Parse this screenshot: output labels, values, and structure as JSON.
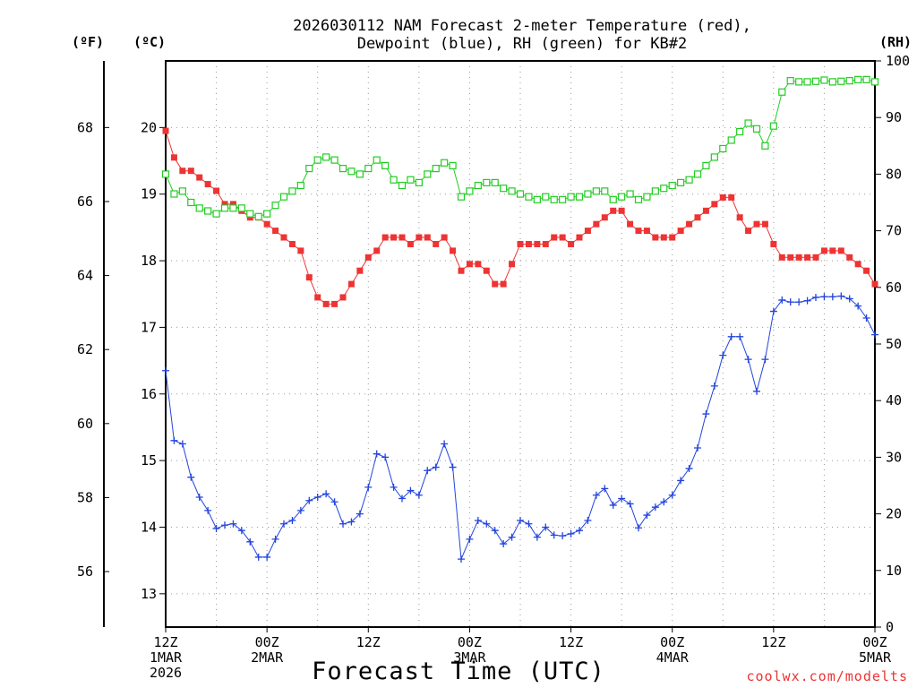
{
  "chart_data": {
    "type": "line",
    "title_lines": [
      "2026030112 NAM Forecast 2-meter Temperature (red),",
      "Dewpoint (blue), RH (green) for KB#2"
    ],
    "xlabel": "Forecast Time (UTC)",
    "credit": "coolwx.com/modelts",
    "x_range": [
      0,
      84
    ],
    "x_ticks": [
      {
        "x": 0,
        "lines": [
          "12Z",
          "1MAR",
          "2026"
        ]
      },
      {
        "x": 12,
        "lines": [
          "00Z",
          "2MAR"
        ]
      },
      {
        "x": 24,
        "lines": [
          "12Z"
        ]
      },
      {
        "x": 36,
        "lines": [
          "00Z",
          "3MAR"
        ]
      },
      {
        "x": 48,
        "lines": [
          "12Z"
        ]
      },
      {
        "x": 60,
        "lines": [
          "00Z",
          "4MAR"
        ]
      },
      {
        "x": 72,
        "lines": [
          "12Z"
        ]
      },
      {
        "x": 84,
        "lines": [
          "00Z",
          "5MAR"
        ]
      }
    ],
    "y_celsius": {
      "unit": "(ºC)",
      "range": [
        12.5,
        21.0
      ],
      "ticks": [
        13,
        14,
        15,
        16,
        17,
        18,
        19,
        20
      ]
    },
    "y_fahrenheit": {
      "unit": "(ºF)",
      "ticks": [
        56,
        58,
        60,
        62,
        64,
        66,
        68
      ]
    },
    "y_rh": {
      "unit": "(RH)",
      "range": [
        0,
        100
      ],
      "ticks": [
        0,
        10,
        20,
        30,
        40,
        50,
        60,
        70,
        80,
        90,
        100
      ]
    },
    "colors": {
      "temperature": "#ee3333",
      "dewpoint": "#2244dd",
      "rh": "#22cc22",
      "grid": "#999999"
    },
    "series": [
      {
        "name": "Temperature",
        "axis": "celsius",
        "values": [
          19.95,
          19.55,
          19.35,
          19.35,
          19.25,
          19.15,
          19.05,
          18.85,
          18.85,
          18.75,
          18.65,
          18.65,
          18.55,
          18.45,
          18.35,
          18.25,
          18.15,
          17.75,
          17.45,
          17.35,
          17.35,
          17.45,
          17.65,
          17.85,
          18.05,
          18.15,
          18.35,
          18.35,
          18.35,
          18.25,
          18.35,
          18.35,
          18.25,
          18.35,
          18.15,
          17.85,
          17.95,
          17.95,
          17.85,
          17.65,
          17.65,
          17.95,
          18.25,
          18.25,
          18.25,
          18.25,
          18.35,
          18.35,
          18.25,
          18.35,
          18.45,
          18.55,
          18.65,
          18.75,
          18.75,
          18.55,
          18.45,
          18.45,
          18.35,
          18.35,
          18.35,
          18.45,
          18.55,
          18.65,
          18.75,
          18.85,
          18.95,
          18.95,
          18.65,
          18.45,
          18.55,
          18.55,
          18.25,
          18.05,
          18.05,
          18.05,
          18.05,
          18.05,
          18.15,
          18.15,
          18.15,
          18.05,
          17.95,
          17.85,
          17.65
        ]
      },
      {
        "name": "Dewpoint",
        "axis": "celsius",
        "values": [
          16.35,
          15.3,
          15.25,
          14.75,
          14.45,
          14.25,
          13.98,
          14.03,
          14.05,
          13.95,
          13.78,
          13.55,
          13.55,
          13.82,
          14.05,
          14.1,
          14.25,
          14.4,
          14.45,
          14.5,
          14.38,
          14.05,
          14.08,
          14.2,
          14.6,
          15.1,
          15.05,
          14.6,
          14.43,
          14.55,
          14.48,
          14.85,
          14.9,
          15.25,
          14.9,
          13.52,
          13.82,
          14.1,
          14.05,
          13.95,
          13.75,
          13.85,
          14.1,
          14.05,
          13.85,
          14.0,
          13.88,
          13.87,
          13.9,
          13.95,
          14.1,
          14.48,
          14.58,
          14.33,
          14.43,
          14.35,
          13.99,
          14.18,
          14.3,
          14.38,
          14.48,
          14.7,
          14.88,
          15.19,
          15.7,
          16.12,
          16.58,
          16.86,
          16.86,
          16.52,
          16.04,
          16.52,
          17.24,
          17.41,
          17.38,
          17.38,
          17.4,
          17.45,
          17.46,
          17.46,
          17.47,
          17.43,
          17.32,
          17.14,
          16.89
        ]
      },
      {
        "name": "RH",
        "axis": "rh",
        "values": [
          80,
          76.5,
          77,
          75,
          74,
          73.5,
          73,
          74,
          74,
          74,
          73,
          72.5,
          73,
          74.5,
          76,
          77,
          78,
          81,
          82.5,
          83,
          82.5,
          81,
          80.5,
          80,
          81,
          82.5,
          81.5,
          79,
          78,
          79,
          78.5,
          80,
          81,
          82,
          81.5,
          76,
          77,
          78,
          78.5,
          78.5,
          77.5,
          77,
          76.5,
          76,
          75.5,
          76,
          75.5,
          75.5,
          76,
          76,
          76.5,
          77,
          77,
          75.5,
          76,
          76.5,
          75.5,
          76,
          77,
          77.5,
          78,
          78.5,
          79,
          80,
          81.5,
          83,
          84.5,
          86,
          87.5,
          89,
          88,
          85,
          88.5,
          94.5,
          96.5,
          96.3,
          96.3,
          96.4,
          96.6,
          96.3,
          96.4,
          96.5,
          96.7,
          96.7,
          96.3
        ]
      }
    ]
  }
}
